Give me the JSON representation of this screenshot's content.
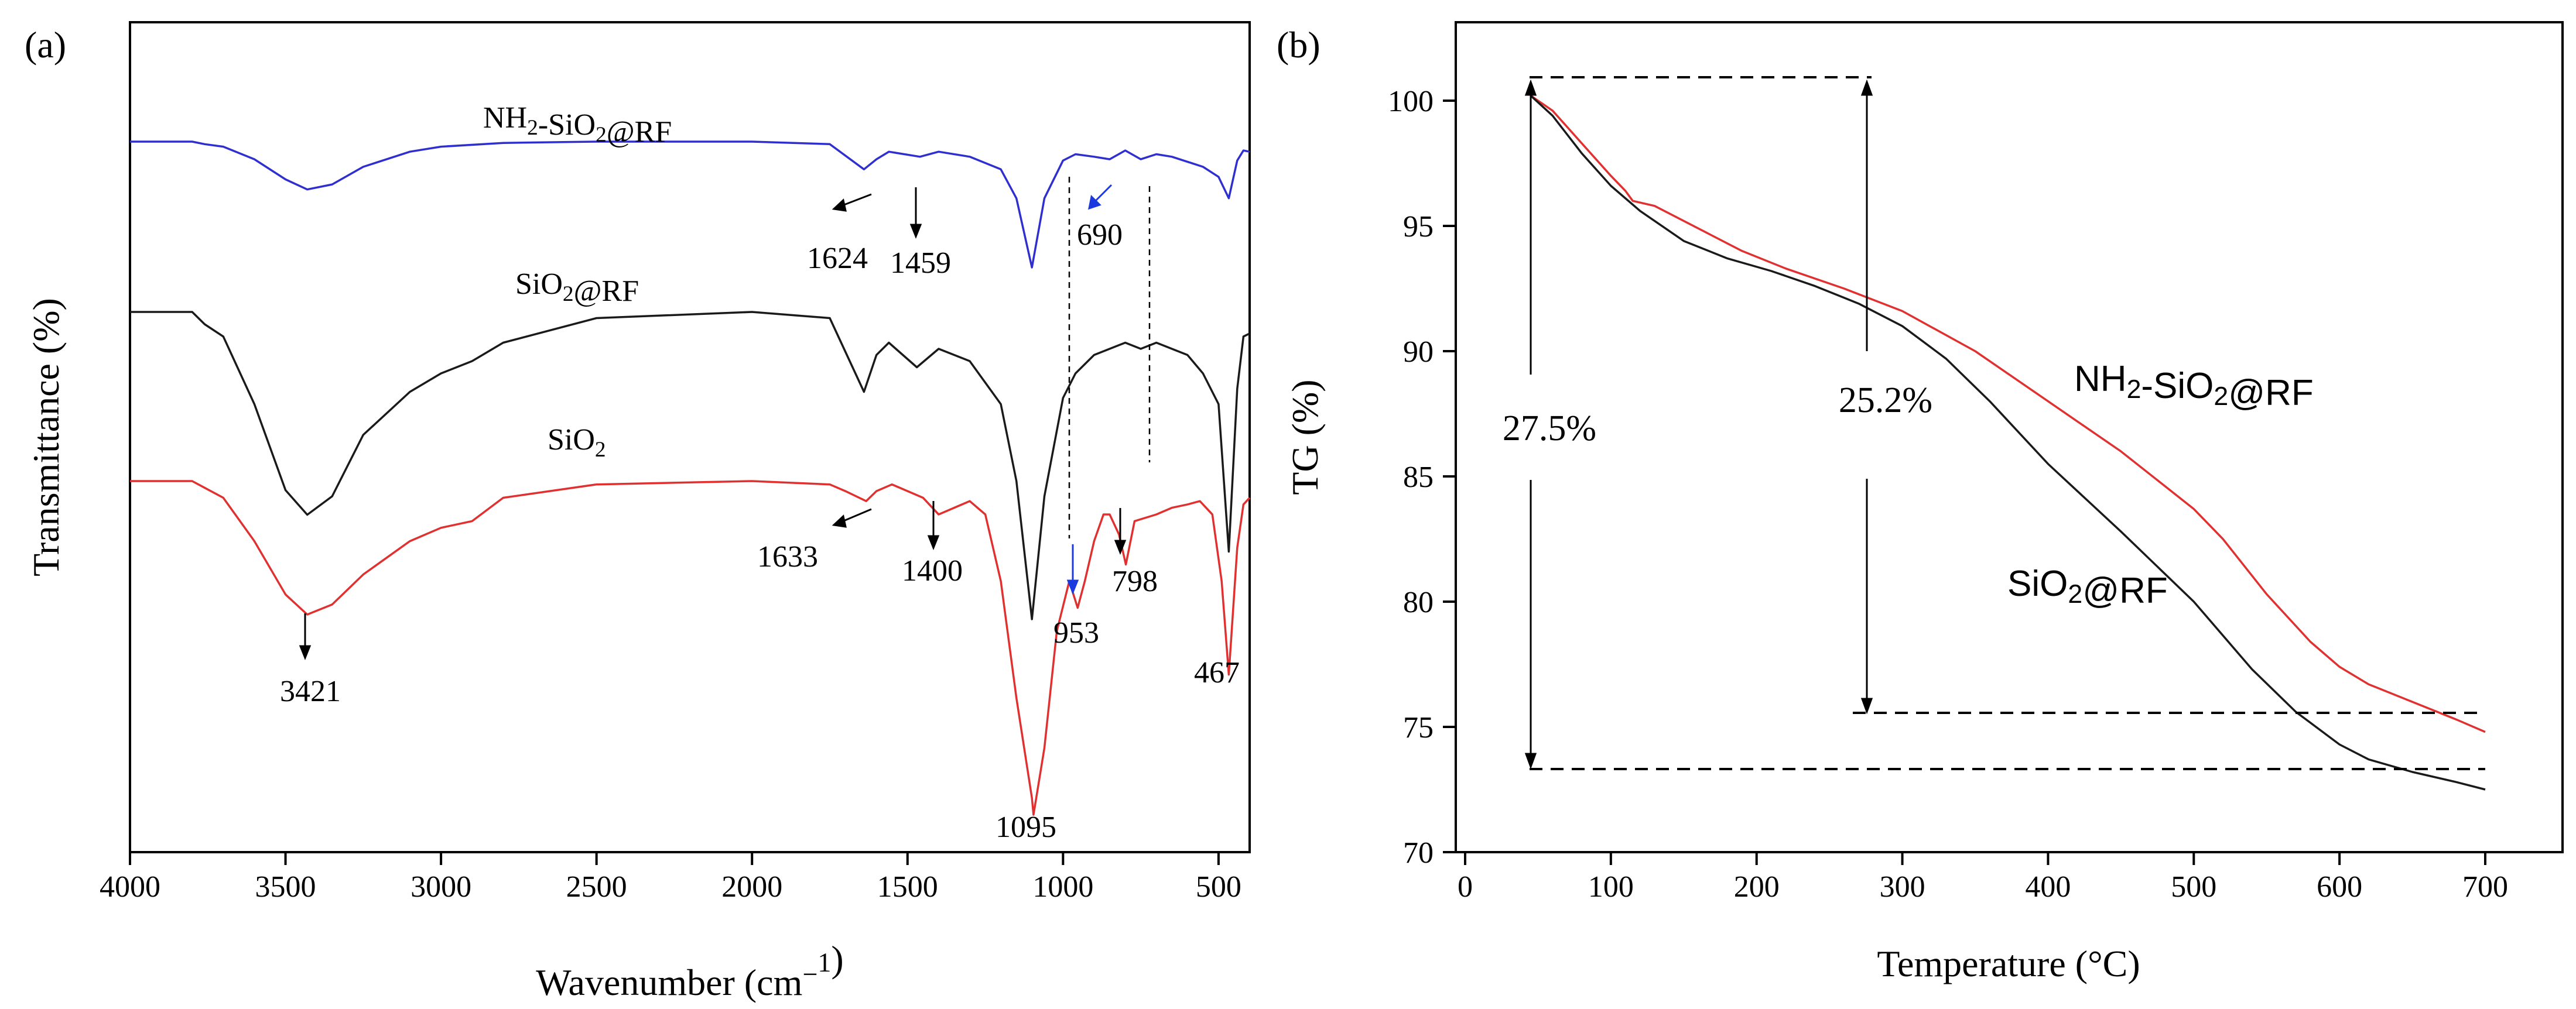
{
  "chart_data": [
    {
      "panel": "(a)",
      "type": "line",
      "xlabel": "Wavenumber (cm⁻¹)",
      "ylabel": "Transmittance (%)",
      "xlim": [
        4000,
        400
      ],
      "xticks": [
        4000,
        3500,
        3000,
        2500,
        2000,
        1500,
        1000,
        500
      ],
      "yticks_shown": false,
      "series": [
        {
          "name": "NH2-SiO2@RF",
          "color": "#2f2fd0",
          "x": [
            4000,
            3800,
            3760,
            3700,
            3600,
            3500,
            3430,
            3350,
            3250,
            3100,
            3000,
            2800,
            2500,
            2000,
            1750,
            1640,
            1600,
            1560,
            1460,
            1400,
            1300,
            1200,
            1150,
            1100,
            1060,
            1000,
            960,
            900,
            850,
            800,
            750,
            700,
            650,
            600,
            550,
            500,
            467,
            440,
            420,
            400
          ],
          "y": [
            1.0,
            1.0,
            0.98,
            0.96,
            0.86,
            0.7,
            0.62,
            0.66,
            0.8,
            0.92,
            0.96,
            0.99,
            1.0,
            1.0,
            0.98,
            0.78,
            0.86,
            0.92,
            0.88,
            0.92,
            0.88,
            0.78,
            0.55,
            0.0,
            0.55,
            0.85,
            0.9,
            0.88,
            0.86,
            0.93,
            0.86,
            0.9,
            0.88,
            0.84,
            0.8,
            0.72,
            0.55,
            0.85,
            0.93,
            0.92
          ]
        },
        {
          "name": "SiO2@RF",
          "color": "#1a1a1a",
          "x": [
            4000,
            3800,
            3760,
            3700,
            3600,
            3500,
            3430,
            3350,
            3250,
            3100,
            3000,
            2900,
            2800,
            2500,
            2000,
            1750,
            1640,
            1600,
            1560,
            1470,
            1400,
            1300,
            1200,
            1150,
            1100,
            1060,
            1000,
            960,
            900,
            800,
            750,
            700,
            650,
            600,
            550,
            500,
            467,
            440,
            420,
            400
          ],
          "y": [
            1.0,
            1.0,
            0.96,
            0.92,
            0.7,
            0.42,
            0.34,
            0.4,
            0.6,
            0.74,
            0.8,
            0.84,
            0.9,
            0.98,
            1.0,
            0.98,
            0.74,
            0.86,
            0.9,
            0.82,
            0.88,
            0.84,
            0.7,
            0.45,
            0.0,
            0.4,
            0.72,
            0.8,
            0.86,
            0.9,
            0.88,
            0.9,
            0.88,
            0.86,
            0.8,
            0.7,
            0.22,
            0.75,
            0.92,
            0.93
          ]
        },
        {
          "name": "SiO2",
          "color": "#e03030",
          "x": [
            4000,
            3800,
            3760,
            3700,
            3600,
            3500,
            3430,
            3350,
            3250,
            3100,
            3000,
            2900,
            2800,
            2500,
            2000,
            1750,
            1700,
            1633,
            1600,
            1550,
            1500,
            1450,
            1400,
            1300,
            1250,
            1200,
            1150,
            1100,
            1095,
            1060,
            1020,
            980,
            953,
            930,
            900,
            870,
            850,
            820,
            798,
            770,
            700,
            650,
            600,
            560,
            520,
            490,
            467,
            440,
            420,
            400
          ],
          "y": [
            1.0,
            1.0,
            0.98,
            0.95,
            0.82,
            0.66,
            0.6,
            0.63,
            0.72,
            0.82,
            0.86,
            0.88,
            0.95,
            0.99,
            1.0,
            0.99,
            0.97,
            0.94,
            0.97,
            0.99,
            0.97,
            0.95,
            0.9,
            0.94,
            0.9,
            0.7,
            0.35,
            0.05,
            0.0,
            0.2,
            0.55,
            0.7,
            0.62,
            0.7,
            0.82,
            0.9,
            0.9,
            0.84,
            0.75,
            0.88,
            0.9,
            0.92,
            0.93,
            0.94,
            0.9,
            0.7,
            0.42,
            0.8,
            0.93,
            0.95
          ]
        }
      ],
      "series_labels": [
        "NH₂-SiO₂@RF",
        "SiO₂@RF",
        "SiO₂"
      ],
      "annotations": [
        "1624",
        "1459",
        "690",
        "1633",
        "1400",
        "953",
        "798",
        "3421",
        "1095",
        "467"
      ]
    },
    {
      "panel": "(b)",
      "type": "line",
      "xlabel": "Temperature (°C)",
      "ylabel": "TG (%)",
      "xlim": [
        0,
        750
      ],
      "ylim": [
        70,
        102.5
      ],
      "xticks": [
        0,
        100,
        200,
        300,
        400,
        500,
        600,
        700
      ],
      "yticks": [
        70,
        75,
        80,
        85,
        90,
        95,
        100
      ],
      "series": [
        {
          "name": "NH2-SiO2@RF",
          "color": "#e03030",
          "x": [
            45,
            60,
            80,
            100,
            110,
            115,
            130,
            160,
            190,
            220,
            260,
            300,
            350,
            400,
            450,
            500,
            520,
            550,
            580,
            600,
            620,
            650,
            680,
            700
          ],
          "y": [
            100.2,
            99.6,
            98.3,
            97.0,
            96.4,
            96.0,
            95.8,
            94.9,
            94.0,
            93.3,
            92.5,
            91.6,
            90.0,
            88.0,
            86.0,
            83.7,
            82.5,
            80.3,
            78.4,
            77.4,
            76.7,
            76.0,
            75.3,
            74.8
          ]
        },
        {
          "name": "SiO2@RF",
          "color": "#1a1a1a",
          "x": [
            45,
            60,
            80,
            100,
            120,
            150,
            180,
            210,
            240,
            270,
            300,
            330,
            360,
            400,
            450,
            500,
            540,
            570,
            600,
            620,
            650,
            680,
            700
          ],
          "y": [
            100.2,
            99.4,
            97.9,
            96.6,
            95.6,
            94.4,
            93.7,
            93.2,
            92.6,
            91.9,
            91.0,
            89.7,
            88.0,
            85.5,
            82.8,
            80.0,
            77.3,
            75.6,
            74.3,
            73.7,
            73.2,
            72.8,
            72.5
          ]
        }
      ],
      "series_labels": [
        "NH₂-SiO₂@RF",
        "SiO₂@RF"
      ],
      "annotations": [
        "27.5%",
        "25.2%"
      ]
    }
  ]
}
